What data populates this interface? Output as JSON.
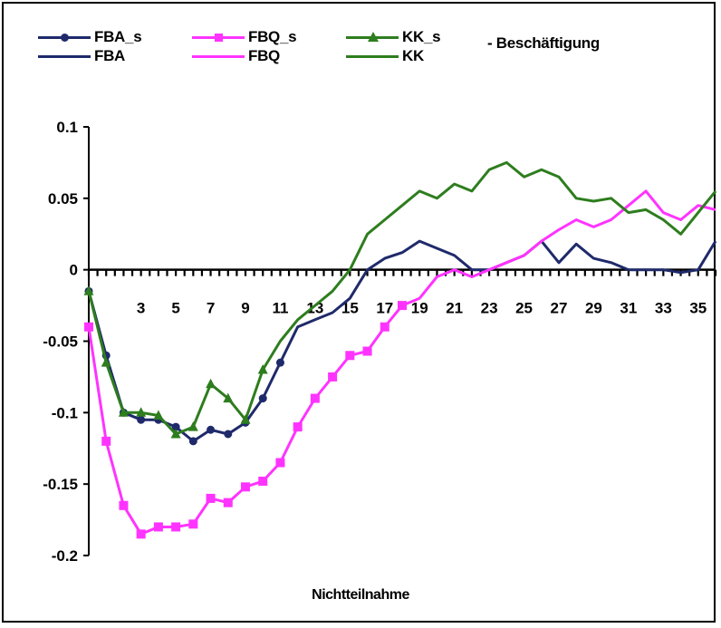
{
  "chart_data": {
    "type": "line",
    "xlabel": "Nichtteilnahme",
    "ylabel": "",
    "ylim": [
      -0.2,
      0.1
    ],
    "yticks": [
      0.1,
      0.05,
      0,
      -0.05,
      -0.1,
      -0.15,
      -0.2
    ],
    "ytick_labels": [
      "0.1",
      "0.05",
      "0",
      "-0.05",
      "-0.1",
      "-0.15",
      "-0.2"
    ],
    "xlim": [
      0,
      36
    ],
    "xtick_labels": [
      "3",
      "5",
      "7",
      "9",
      "11",
      "13",
      "15",
      "17",
      "19",
      "21",
      "23",
      "25",
      "27",
      "29",
      "31",
      "33",
      "35"
    ],
    "legend_extra": "- Beschäftigung",
    "legend": [
      {
        "label": "FBA_s",
        "color": "#1f2a6b",
        "marker": "circle"
      },
      {
        "label": "FBQ_s",
        "color": "#ff33ff",
        "marker": "square"
      },
      {
        "label": "KK_s",
        "color": "#2e7d1e",
        "marker": "triangle"
      },
      {
        "label": "FBA",
        "color": "#1f2a6b",
        "marker": "none"
      },
      {
        "label": "FBQ",
        "color": "#ff33ff",
        "marker": "none"
      },
      {
        "label": "KK",
        "color": "#2e7d1e",
        "marker": "none"
      }
    ],
    "series": [
      {
        "name": "FBA_s",
        "color": "#1f2a6b",
        "marker": "circle",
        "x": [
          0,
          1,
          2,
          3,
          4,
          5,
          6,
          7,
          8,
          9,
          10,
          11
        ],
        "y": [
          -0.015,
          -0.06,
          -0.1,
          -0.105,
          -0.105,
          -0.11,
          -0.12,
          -0.112,
          -0.115,
          -0.107,
          -0.09,
          -0.065
        ]
      },
      {
        "name": "FBA",
        "color": "#1f2a6b",
        "marker": "none",
        "x": [
          11,
          12,
          13,
          14,
          15,
          16,
          17,
          18,
          19,
          20,
          21,
          22,
          23,
          24,
          25,
          26,
          27,
          28,
          29,
          30,
          31,
          32,
          33,
          34,
          35,
          36
        ],
        "y": [
          -0.065,
          -0.04,
          -0.035,
          -0.03,
          -0.02,
          0.0,
          0.008,
          0.012,
          0.02,
          0.015,
          0.01,
          0.0,
          0.0,
          0.005,
          0.01,
          0.02,
          0.005,
          0.018,
          0.008,
          0.005,
          0.0,
          0.0,
          0.0,
          -0.002,
          0.0,
          0.02
        ]
      },
      {
        "name": "FBQ_s",
        "color": "#ff33ff",
        "marker": "square",
        "x": [
          0,
          1,
          2,
          3,
          4,
          5,
          6,
          7,
          8,
          9,
          10,
          11,
          12,
          13,
          14,
          15,
          16,
          17,
          18
        ],
        "y": [
          -0.04,
          -0.12,
          -0.165,
          -0.185,
          -0.18,
          -0.18,
          -0.178,
          -0.16,
          -0.163,
          -0.152,
          -0.148,
          -0.135,
          -0.11,
          -0.09,
          -0.075,
          -0.06,
          -0.057,
          -0.04,
          -0.025
        ]
      },
      {
        "name": "FBQ",
        "color": "#ff33ff",
        "marker": "none",
        "x": [
          18,
          19,
          20,
          21,
          22,
          23,
          24,
          25,
          26,
          27,
          28,
          29,
          30,
          31,
          32,
          33,
          34,
          35,
          36
        ],
        "y": [
          -0.025,
          -0.02,
          -0.005,
          0.0,
          -0.005,
          0.0,
          0.005,
          0.01,
          0.02,
          0.028,
          0.035,
          0.03,
          0.035,
          0.045,
          0.055,
          0.04,
          0.035,
          0.045,
          0.042
        ]
      },
      {
        "name": "KK_s",
        "color": "#2e7d1e",
        "marker": "triangle",
        "x": [
          0,
          1,
          2,
          3,
          4,
          5,
          6,
          7,
          8,
          9,
          10
        ],
        "y": [
          -0.015,
          -0.065,
          -0.1,
          -0.1,
          -0.102,
          -0.115,
          -0.11,
          -0.08,
          -0.09,
          -0.105,
          -0.07
        ]
      },
      {
        "name": "KK",
        "color": "#2e7d1e",
        "marker": "none",
        "x": [
          10,
          11,
          12,
          13,
          14,
          15,
          16,
          17,
          18,
          19,
          20,
          21,
          22,
          23,
          24,
          25,
          26,
          27,
          28,
          29,
          30,
          31,
          32,
          33,
          34,
          35,
          36
        ],
        "y": [
          -0.07,
          -0.05,
          -0.035,
          -0.025,
          -0.015,
          0.0,
          0.025,
          0.035,
          0.045,
          0.055,
          0.05,
          0.06,
          0.055,
          0.07,
          0.075,
          0.065,
          0.07,
          0.065,
          0.05,
          0.048,
          0.05,
          0.04,
          0.042,
          0.035,
          0.025,
          0.04,
          0.055
        ]
      }
    ]
  }
}
